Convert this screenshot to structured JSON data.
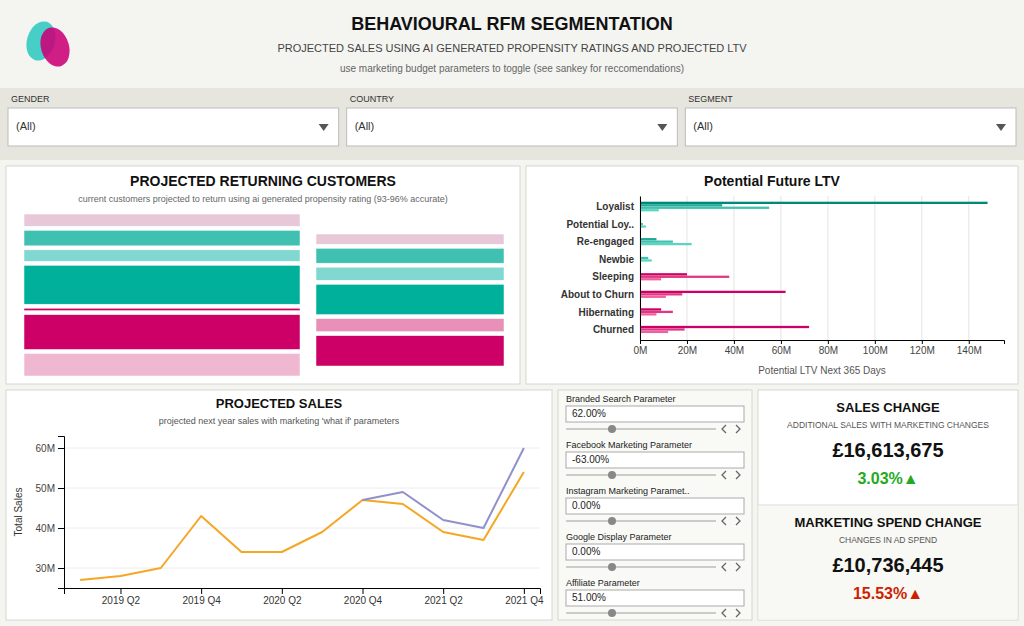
{
  "title": "BEHAVIOURAL RFM SEGMENTATION",
  "subtitle": "PROJECTED SALES USING AI GENERATED PROPENSITY RATINGS AND PROJECTED LTV",
  "annotations": [
    "use marketing budget parameters to toggle (see sankey for reccomendations)"
  ],
  "chart_data": [
    {
      "type": "filter",
      "categories": [
        "GENDER",
        "COUNTRY",
        "SEGMENT"
      ],
      "annotations": [
        "(All)",
        "(All)",
        "(All)"
      ]
    },
    {
      "type": "bar",
      "title": "PROJECTED RETURNING CUSTOMERS",
      "subtitle": "current customers projected to return using ai generated propensity rating (93-96% accurate)",
      "stacked": true,
      "tick_labels": false,
      "categories": [
        null
      ],
      "series": [
        {
          "color": "#f0b8d0",
          "values": [
            0.55
          ]
        },
        {
          "color": "#cc0066",
          "values": [
            0.85
          ]
        },
        {
          "color": "#cc0066",
          "values": [
            0.06
          ]
        },
        {
          "color": "#00b09b",
          "values": [
            0.95
          ]
        },
        {
          "color": "#80d8d0",
          "values": [
            0.28
          ]
        },
        {
          "color": "#40c0b0",
          "values": [
            0.38
          ]
        },
        {
          "color": "#e8c8d8",
          "values": [
            0.3
          ]
        }
      ]
    },
    {
      "type": "bar",
      "stacked": true,
      "tick_labels": false,
      "categories": [
        null
      ],
      "series": [
        {
          "color": "#cc0066",
          "values": [
            0.65
          ]
        },
        {
          "color": "#e890b8",
          "values": [
            0.28
          ]
        },
        {
          "color": "#00b09b",
          "values": [
            0.65
          ]
        },
        {
          "color": "#80d8d0",
          "values": [
            0.28
          ]
        },
        {
          "color": "#40c0b0",
          "values": [
            0.32
          ]
        },
        {
          "color": "#e8c8d8",
          "values": [
            0.22
          ]
        }
      ]
    },
    {
      "type": "bar",
      "orientation": "horizontal",
      "title": "Potential Future LTV",
      "xlabel": "Potential LTV Next 365 Days",
      "categories": [
        "Loyalist",
        "Potential Loy..",
        "Re-engaged",
        "Newbie",
        "Sleeping",
        "About to Churn",
        "Hibernating",
        "Churned"
      ],
      "series": [
        {
          "colors": [
            "#5ad5c0",
            "#5ad5c0",
            "#5ad5c0",
            "#5ad5c0",
            "#f060a0",
            "#f060a0",
            "#f060a0",
            "#f060a0"
          ],
          "values": [
            8,
            2.5,
            22,
            5,
            9,
            11,
            7,
            12
          ]
        },
        {
          "colors": [
            "#40c0b0",
            "#40c0b0",
            "#40c0b0",
            "#40c0b0",
            "#e03880",
            "#e03880",
            "#e03880",
            "#e03880"
          ],
          "values": [
            55,
            1.2,
            14,
            3.5,
            38,
            18,
            14,
            19
          ]
        },
        {
          "colors": [
            "#20a898",
            "#20a898",
            "#20a898",
            "#20a898",
            "#cc0066",
            "#cc0066",
            "#cc0066",
            "#cc0066"
          ],
          "values": [
            35,
            0.5,
            7,
            0,
            20,
            62,
            9,
            72
          ]
        },
        {
          "colors": [
            "#008878",
            "#008878",
            "#008878",
            "#008878",
            "#aa0050",
            "#aa0050",
            "#aa0050",
            "#aa0050"
          ],
          "values": [
            148,
            0,
            0,
            0,
            0,
            0,
            0,
            0
          ]
        }
      ],
      "xlim": [
        0,
        155
      ],
      "xticks": [
        {
          "value": 0,
          "label": "0M"
        },
        {
          "value": 20,
          "label": "20M"
        },
        {
          "value": 40,
          "label": "40M"
        },
        {
          "value": 60,
          "label": "60M"
        },
        {
          "value": 80,
          "label": "80M"
        },
        {
          "value": 100,
          "label": "100M"
        },
        {
          "value": 120,
          "label": "120M"
        },
        {
          "value": 140,
          "label": "140M"
        }
      ],
      "grid": true
    },
    {
      "type": "line",
      "title": "PROJECTED SALES",
      "subtitle": "projected next year sales with marketing 'what if' parameters",
      "ylabel": "Total Sales",
      "categories": [
        null,
        "2019 Q2",
        null,
        "2019 Q4",
        null,
        "2020 Q2",
        null,
        "2020 Q4",
        null,
        "2021 Q2",
        null,
        "2021 Q4"
      ],
      "series": [
        {
          "color": "#f5a623",
          "values": [
            27,
            28,
            30,
            43,
            34,
            34,
            39,
            47,
            46,
            39,
            37,
            54
          ]
        },
        {
          "color": "#9090cc",
          "values": [
            null,
            null,
            null,
            null,
            null,
            null,
            null,
            47,
            49,
            42,
            40,
            60
          ]
        }
      ],
      "ylim": [
        25,
        63
      ],
      "yticks": [
        {
          "value": 30,
          "label": "30M"
        },
        {
          "value": 40,
          "label": "40M"
        },
        {
          "value": 50,
          "label": "50M"
        },
        {
          "value": 60,
          "label": "60M"
        }
      ],
      "grid": true
    },
    {
      "type": "controls",
      "categories": [
        "Branded Search Parameter",
        "Facebook Marketing Parameter",
        "Instagram Marketing Paramet..",
        "Google Display Parameter",
        "Affiliate Parameter"
      ],
      "values": [
        62.0,
        -63.0,
        0.0,
        0.0,
        51.0
      ],
      "value_labels": [
        "62.00%",
        "-63.00%",
        "0.00%",
        "0.00%",
        "51.00%"
      ]
    },
    {
      "type": "indicator",
      "title": "SALES CHANGE",
      "subtitle": "ADDITIONAL SALES WITH MARKETING CHANGES",
      "values": [
        16613675,
        3.03
      ],
      "value_labels": [
        "£16,613,675",
        "3.03%▲"
      ],
      "color": "#22aa22"
    },
    {
      "type": "indicator",
      "title": "MARKETING SPEND CHANGE",
      "subtitle": "CHANGES IN AD SPEND",
      "values": [
        10736445,
        15.53
      ],
      "value_labels": [
        "£10,736,445",
        "15.53%▲"
      ],
      "color": "#cc2200"
    }
  ]
}
